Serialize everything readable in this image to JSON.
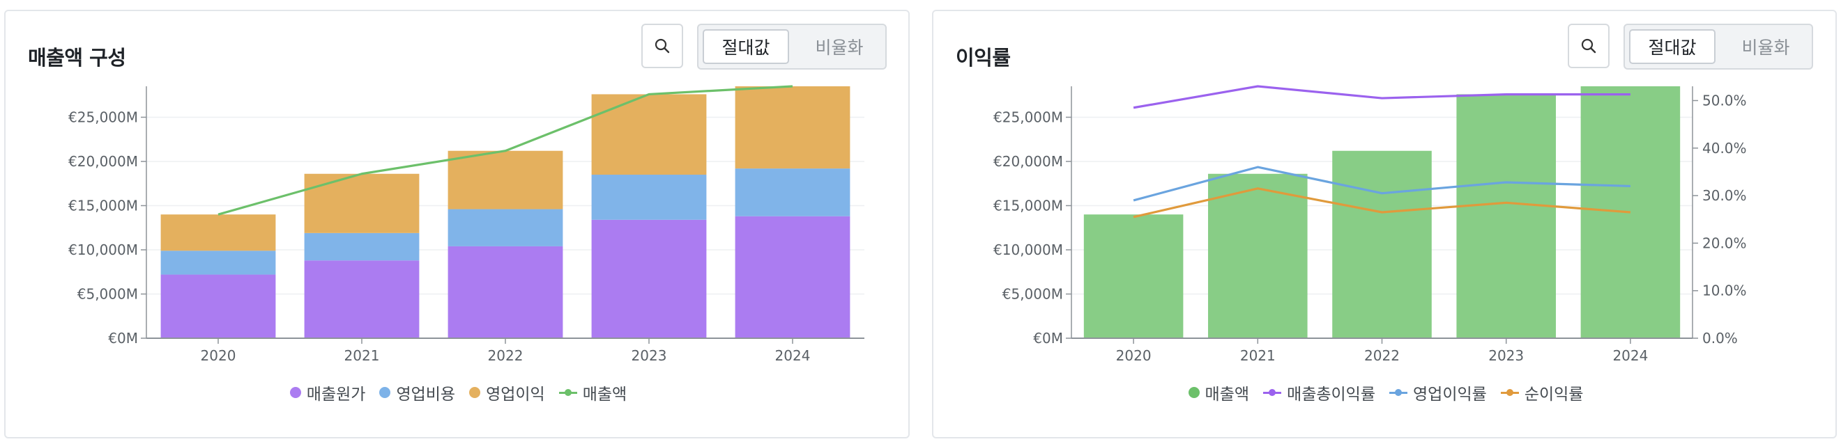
{
  "panels": [
    {
      "title": "매출액 구성",
      "toggle": {
        "active": "절대값",
        "inactive": "비율화"
      },
      "legend": [
        {
          "label": "매출원가",
          "color": "#ab7cf1",
          "kind": "dot"
        },
        {
          "label": "영업비용",
          "color": "#7db2e8",
          "kind": "dot"
        },
        {
          "label": "영업이익",
          "color": "#e4b05e",
          "kind": "dot"
        },
        {
          "label": "매출액",
          "color": "#6cc06a",
          "kind": "line"
        }
      ]
    },
    {
      "title": "이익률",
      "toggle": {
        "active": "절대값",
        "inactive": "비율화"
      },
      "legend": [
        {
          "label": "매출액",
          "color": "#6cc06a",
          "kind": "dot"
        },
        {
          "label": "매출총이익률",
          "color": "#9b62ee",
          "kind": "line"
        },
        {
          "label": "영업이익률",
          "color": "#6aa4df",
          "kind": "line"
        },
        {
          "label": "순이익률",
          "color": "#e09a3c",
          "kind": "line"
        }
      ]
    }
  ],
  "chart_data": [
    {
      "type": "bar",
      "stacked": true,
      "title": "매출액 구성",
      "categories": [
        "2020",
        "2021",
        "2022",
        "2023",
        "2024"
      ],
      "yticks": [
        "€0M",
        "€5,000M",
        "€10,000M",
        "€15,000M",
        "€20,000M",
        "€25,000M"
      ],
      "ylim": [
        0,
        28500
      ],
      "series": [
        {
          "name": "매출원가",
          "color": "#ab7cf1",
          "values": [
            7200,
            8800,
            10400,
            13400,
            13800
          ]
        },
        {
          "name": "영업비용",
          "color": "#80b4e9",
          "values": [
            2700,
            3100,
            4200,
            5100,
            5400
          ]
        },
        {
          "name": "영업이익",
          "color": "#e4b05e",
          "values": [
            4100,
            6700,
            6600,
            9100,
            9300
          ]
        }
      ],
      "line_series": [
        {
          "name": "매출액",
          "color": "#6cc06a",
          "values": [
            14000,
            18600,
            21200,
            27600,
            28500
          ]
        }
      ]
    },
    {
      "type": "bar",
      "title": "이익률",
      "categories": [
        "2020",
        "2021",
        "2022",
        "2023",
        "2024"
      ],
      "yticks": [
        "€0M",
        "€5,000M",
        "€10,000M",
        "€15,000M",
        "€20,000M",
        "€25,000M"
      ],
      "ylim": [
        0,
        28500
      ],
      "y2ticks": [
        "0.0%",
        "10.0%",
        "20.0%",
        "30.0%",
        "40.0%",
        "50.0%"
      ],
      "y2lim": [
        0,
        53
      ],
      "series": [
        {
          "name": "매출액",
          "color": "#88cd86",
          "values": [
            14000,
            18600,
            21200,
            27600,
            28500
          ]
        }
      ],
      "line_series": [
        {
          "name": "매출총이익률",
          "color": "#9b62ee",
          "values": [
            48.5,
            53.0,
            50.5,
            51.3,
            51.3
          ]
        },
        {
          "name": "영업이익률",
          "color": "#6aa4df",
          "values": [
            29.0,
            36.0,
            30.5,
            32.8,
            32.0
          ]
        },
        {
          "name": "순이익률",
          "color": "#e09a3c",
          "values": [
            25.5,
            31.5,
            26.5,
            28.5,
            26.5
          ]
        }
      ]
    }
  ]
}
